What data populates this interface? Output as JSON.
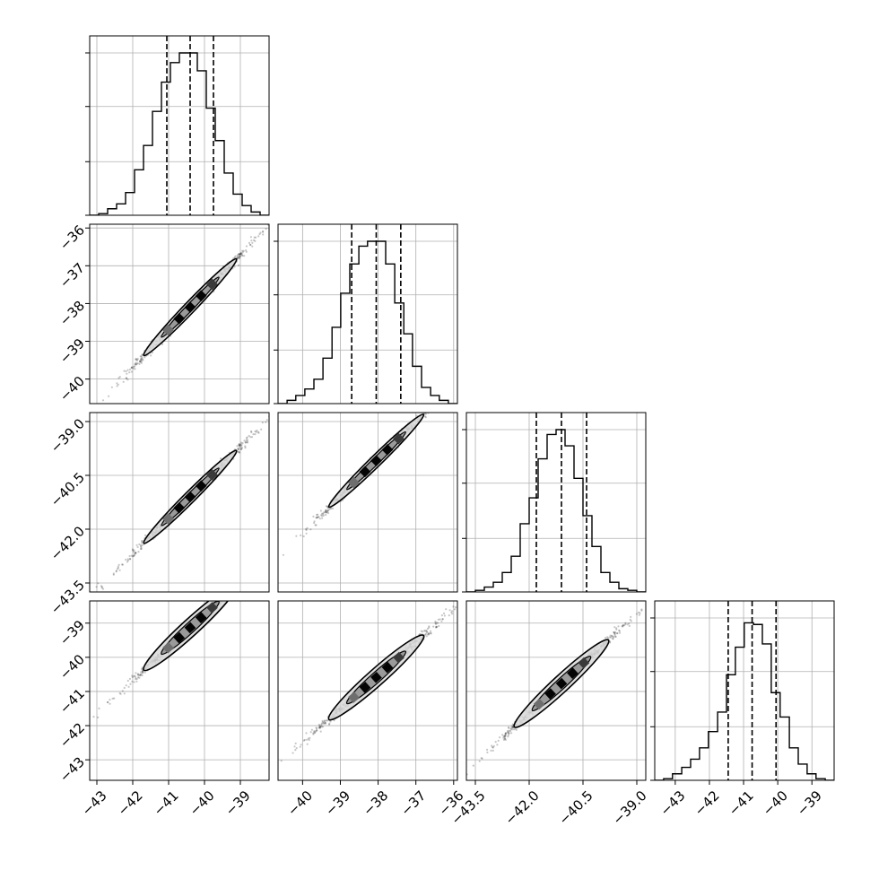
{
  "chart_data": {
    "type": "corner",
    "n_params": 4,
    "grid": true,
    "params": [
      {
        "range": [
          -43.2,
          -38.2
        ],
        "ticks": [
          -43,
          -42,
          -41,
          -40,
          -39
        ],
        "tick_labels": [
          "−43",
          "−42",
          "−41",
          "−40",
          "−39"
        ],
        "quantiles": [
          -41.05,
          -40.4,
          -39.75
        ],
        "mean": -40.4,
        "sd": 0.68
      },
      {
        "range": [
          -40.65,
          -35.9
        ],
        "ticks": [
          -40,
          -39,
          -38,
          -37,
          -36
        ],
        "tick_labels": [
          "−40",
          "−39",
          "−38",
          "−37",
          "−36"
        ],
        "quantiles": [
          -38.7,
          -38.05,
          -37.4
        ],
        "mean": -38.05,
        "sd": 0.66
      },
      {
        "range": [
          -43.75,
          -38.75
        ],
        "ticks": [
          -43.5,
          -42.0,
          -40.5,
          -39.0
        ],
        "tick_labels": [
          "−43.5",
          "−42.0",
          "−40.5",
          "−39.0"
        ],
        "quantiles": [
          -41.8,
          -41.1,
          -40.4
        ],
        "mean": -41.1,
        "sd": 0.69
      },
      {
        "range": [
          -43.6,
          -38.35
        ],
        "ticks": [
          -43,
          -42,
          -41,
          -40,
          -39
        ],
        "tick_labels": [
          "−43",
          "−42",
          "−41",
          "−40",
          "−39"
        ],
        "quantiles": [
          -41.45,
          -40.75,
          -40.05
        ],
        "mean": -40.75,
        "sd": 0.68
      }
    ],
    "histograms": [
      {
        "param": 0,
        "edges": [
          -43.2,
          -42.95,
          -42.7,
          -42.45,
          -42.2,
          -41.95,
          -41.7,
          -41.45,
          -41.2,
          -40.95,
          -40.7,
          -40.45,
          -40.2,
          -39.95,
          -39.7,
          -39.45,
          -39.2,
          -38.95,
          -38.7,
          -38.45,
          -38.2
        ],
        "counts": [
          0,
          0.01,
          0.04,
          0.07,
          0.14,
          0.28,
          0.43,
          0.64,
          0.82,
          0.94,
          1.0,
          1.0,
          0.89,
          0.66,
          0.46,
          0.26,
          0.13,
          0.06,
          0.02,
          0
        ]
      },
      {
        "param": 1,
        "edges": [
          -40.65,
          -40.41,
          -40.18,
          -39.94,
          -39.7,
          -39.46,
          -39.22,
          -38.99,
          -38.75,
          -38.51,
          -38.28,
          -38.04,
          -37.8,
          -37.56,
          -37.32,
          -37.09,
          -36.85,
          -36.61,
          -36.38,
          -36.14,
          -35.9
        ],
        "counts": [
          0,
          0.02,
          0.05,
          0.09,
          0.15,
          0.28,
          0.47,
          0.68,
          0.86,
          0.97,
          1.0,
          1.0,
          0.86,
          0.62,
          0.43,
          0.23,
          0.1,
          0.05,
          0.02,
          0
        ]
      },
      {
        "param": 2,
        "edges": [
          -43.75,
          -43.5,
          -43.25,
          -43.0,
          -42.75,
          -42.5,
          -42.25,
          -42.0,
          -41.75,
          -41.5,
          -41.25,
          -41.0,
          -40.75,
          -40.5,
          -40.25,
          -40.0,
          -39.75,
          -39.5,
          -39.25,
          -39.0,
          -38.75
        ],
        "counts": [
          0,
          0.01,
          0.03,
          0.06,
          0.12,
          0.22,
          0.42,
          0.58,
          0.82,
          0.97,
          1.0,
          0.9,
          0.7,
          0.47,
          0.28,
          0.12,
          0.06,
          0.02,
          0.01,
          0
        ]
      },
      {
        "param": 3,
        "edges": [
          -43.6,
          -43.34,
          -43.08,
          -42.81,
          -42.55,
          -42.29,
          -42.03,
          -41.76,
          -41.5,
          -41.24,
          -40.98,
          -40.71,
          -40.45,
          -40.19,
          -39.93,
          -39.66,
          -39.4,
          -39.14,
          -38.88,
          -38.61,
          -38.35
        ],
        "counts": [
          0,
          0.01,
          0.04,
          0.08,
          0.13,
          0.2,
          0.3,
          0.42,
          0.65,
          0.82,
          0.97,
          0.96,
          0.84,
          0.54,
          0.39,
          0.2,
          0.1,
          0.04,
          0.01,
          0
        ]
      }
    ],
    "scatter_panels": [
      {
        "x_param": 0,
        "y_param": 1,
        "slope": 0.99,
        "offset": 1.9
      },
      {
        "x_param": 0,
        "y_param": 2,
        "slope": 1.0,
        "offset": -0.7
      },
      {
        "x_param": 1,
        "y_param": 2,
        "slope": 1.03,
        "offset": -0.9
      },
      {
        "x_param": 0,
        "y_param": 3,
        "slope": 0.96,
        "offset": -0.35
      },
      {
        "x_param": 1,
        "y_param": 3,
        "slope": 0.98,
        "offset": -3.3
      },
      {
        "x_param": 2,
        "y_param": 3,
        "slope": 0.97,
        "offset": -0.9
      }
    ]
  }
}
